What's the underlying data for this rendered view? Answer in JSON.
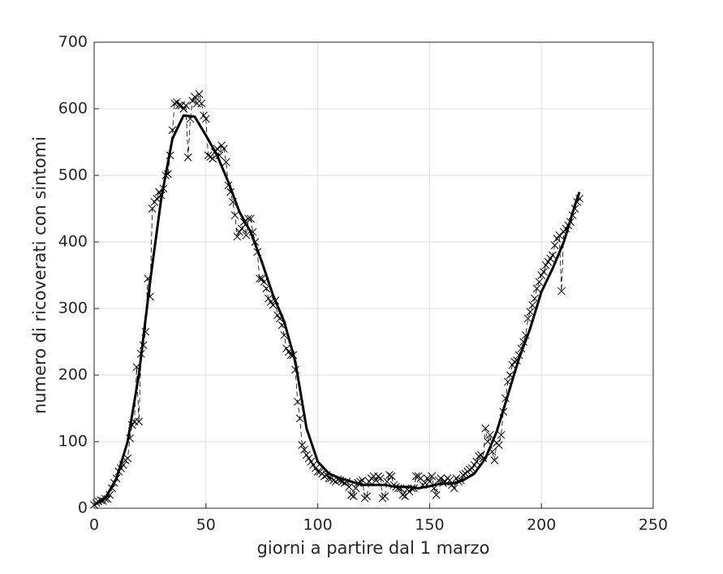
{
  "chart_data": {
    "type": "line",
    "xlabel": "giorni a partire dal 1 marzo",
    "ylabel": "numero di ricoverati con sintomi",
    "xlim": [
      0,
      250
    ],
    "xticks": [
      0,
      50,
      100,
      150,
      200,
      250
    ],
    "ylim": [
      0,
      700
    ],
    "yticks": [
      0,
      100,
      200,
      300,
      400,
      500,
      600,
      700
    ],
    "grid": true,
    "series": [
      {
        "color": "#000000",
        "marker": "x",
        "linestyle": "dashed",
        "linewidth": 0.8,
        "x": [
          0,
          1,
          2,
          3,
          4,
          5,
          6,
          7,
          8,
          9,
          10,
          11,
          12,
          13,
          14,
          15,
          16,
          17,
          18,
          19,
          20,
          21,
          22,
          23,
          24,
          25,
          26,
          27,
          28,
          29,
          30,
          31,
          32,
          33,
          34,
          35,
          36,
          37,
          38,
          39,
          40,
          41,
          42,
          43,
          44,
          45,
          46,
          47,
          48,
          49,
          50,
          51,
          52,
          53,
          54,
          55,
          56,
          57,
          58,
          59,
          60,
          61,
          62,
          63,
          64,
          65,
          66,
          67,
          68,
          69,
          70,
          71,
          72,
          73,
          74,
          75,
          76,
          77,
          78,
          79,
          80,
          81,
          82,
          83,
          84,
          85,
          86,
          87,
          88,
          89,
          90,
          91,
          92,
          93,
          94,
          95,
          96,
          97,
          98,
          99,
          100,
          101,
          102,
          103,
          104,
          105,
          106,
          107,
          108,
          109,
          110,
          111,
          112,
          113,
          114,
          115,
          116,
          117,
          118,
          119,
          120,
          121,
          122,
          123,
          124,
          125,
          126,
          127,
          128,
          129,
          130,
          131,
          132,
          133,
          134,
          135,
          136,
          137,
          138,
          139,
          140,
          141,
          142,
          143,
          144,
          145,
          146,
          147,
          148,
          149,
          150,
          151,
          152,
          153,
          154,
          155,
          156,
          157,
          158,
          159,
          160,
          161,
          162,
          163,
          164,
          165,
          166,
          167,
          168,
          169,
          170,
          171,
          172,
          173,
          174,
          175,
          176,
          177,
          178,
          179,
          180,
          181,
          182,
          183,
          184,
          185,
          186,
          187,
          188,
          189,
          190,
          191,
          192,
          193,
          194,
          195,
          196,
          197,
          198,
          199,
          200,
          201,
          202,
          203,
          204,
          205,
          206,
          207,
          208,
          209,
          210,
          211,
          212,
          213,
          214,
          215,
          216,
          217
        ],
        "values": [
          5,
          8,
          10,
          12,
          11,
          14,
          14,
          20,
          30,
          38,
          45,
          55,
          60,
          65,
          72,
          75,
          105,
          125,
          130,
          212,
          130,
          232,
          245,
          265,
          345,
          318,
          450,
          460,
          465,
          475,
          470,
          480,
          500,
          502,
          530,
          568,
          608,
          610,
          605,
          605,
          600,
          605,
          527,
          585,
          612,
          618,
          608,
          622,
          608,
          590,
          585,
          530,
          528,
          525,
          535,
          540,
          530,
          545,
          540,
          520,
          485,
          475,
          460,
          440,
          408,
          415,
          420,
          430,
          410,
          435,
          435,
          415,
          400,
          385,
          345,
          345,
          340,
          330,
          315,
          310,
          305,
          312,
          290,
          285,
          275,
          260,
          240,
          235,
          230,
          230,
          208,
          160,
          135,
          95,
          88,
          80,
          75,
          70,
          65,
          60,
          55,
          55,
          52,
          48,
          50,
          45,
          45,
          42,
          40,
          43,
          42,
          40,
          38,
          40,
          32,
          20,
          18,
          30,
          38,
          40,
          42,
          15,
          18,
          40,
          45,
          48,
          42,
          48,
          45,
          15,
          18,
          40,
          50,
          48,
          35,
          32,
          30,
          30,
          20,
          18,
          28,
          25,
          30,
          30,
          48,
          48,
          45,
          35,
          38,
          45,
          40,
          48,
          30,
          20,
          42,
          45,
          38,
          40,
          45,
          42,
          35,
          30,
          45,
          40,
          42,
          50,
          52,
          55,
          58,
          60,
          65,
          70,
          78,
          80,
          75,
          120,
          100,
          110,
          85,
          72,
          98,
          95,
          110,
          145,
          165,
          190,
          200,
          215,
          220,
          222,
          230,
          240,
          250,
          260,
          285,
          295,
          305,
          315,
          330,
          340,
          350,
          355,
          365,
          370,
          375,
          380,
          395,
          405,
          410,
          326,
          415,
          420,
          425,
          430,
          440,
          450,
          460,
          465
        ]
      },
      {
        "color": "#000000",
        "linestyle": "solid",
        "linewidth": 3,
        "x": [
          0,
          5,
          10,
          15,
          20,
          25,
          30,
          35,
          40,
          45,
          50,
          55,
          60,
          65,
          70,
          75,
          80,
          85,
          90,
          95,
          100,
          105,
          110,
          115,
          120,
          125,
          130,
          135,
          140,
          145,
          150,
          155,
          160,
          165,
          170,
          175,
          180,
          185,
          190,
          195,
          200,
          205,
          210,
          215,
          217
        ],
        "values": [
          5,
          15,
          45,
          100,
          200,
          340,
          465,
          555,
          590,
          588,
          560,
          530,
          490,
          445,
          415,
          370,
          320,
          280,
          220,
          120,
          70,
          52,
          45,
          40,
          35,
          35,
          35,
          32,
          32,
          30,
          33,
          37,
          37,
          42,
          52,
          75,
          115,
          170,
          225,
          270,
          325,
          360,
          400,
          455,
          475
        ]
      }
    ]
  }
}
